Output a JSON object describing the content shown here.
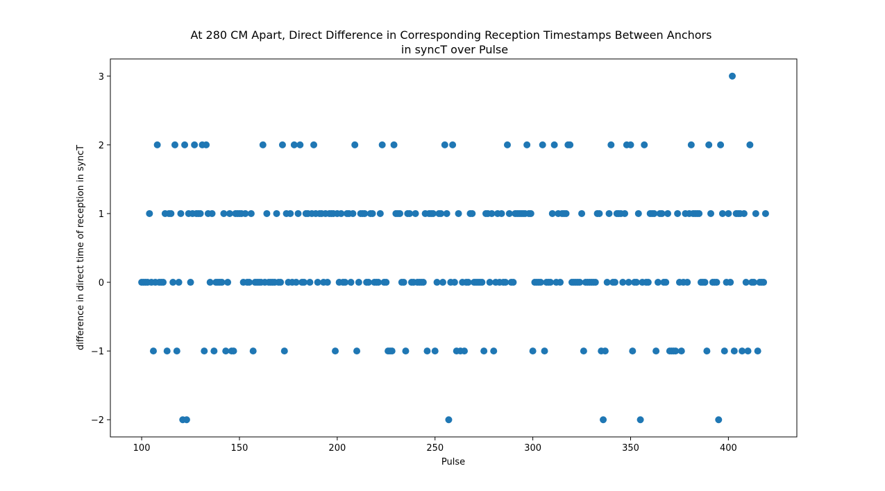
{
  "chart_data": {
    "type": "scatter",
    "title_line1": "At 280 CM Apart, Direct Difference in Corresponding Reception Timestamps Between Anchors",
    "title_line2": "in syncT over Pulse",
    "xlabel": "Pulse",
    "ylabel": "difference in direct time of reception in syncT",
    "xlim": [
      84,
      435
    ],
    "ylim": [
      -2.25,
      3.25
    ],
    "x_ticks": [
      100,
      150,
      200,
      250,
      300,
      350,
      400
    ],
    "y_ticks": [
      -2,
      -1,
      0,
      1,
      2,
      3
    ],
    "x_tick_labels": [
      "100",
      "150",
      "200",
      "250",
      "300",
      "350",
      "400"
    ],
    "y_tick_labels": [
      "−2",
      "−1",
      "0",
      "1",
      "2",
      "3"
    ],
    "grid": false,
    "marker_color": "#1f77b4",
    "series": [
      {
        "points": [
          [
            100,
            0
          ],
          [
            101,
            0
          ],
          [
            102,
            0
          ],
          [
            103,
            0
          ],
          [
            104,
            1
          ],
          [
            105,
            0
          ],
          [
            106,
            -1
          ],
          [
            107,
            0
          ],
          [
            108,
            2
          ],
          [
            109,
            0
          ],
          [
            110,
            0
          ],
          [
            111,
            0
          ],
          [
            112,
            1
          ],
          [
            113,
            -1
          ],
          [
            114,
            1
          ],
          [
            115,
            1
          ],
          [
            116,
            0
          ],
          [
            117,
            2
          ],
          [
            118,
            -1
          ],
          [
            119,
            0
          ],
          [
            120,
            1
          ],
          [
            121,
            -2
          ],
          [
            122,
            2
          ],
          [
            123,
            -2
          ],
          [
            124,
            1
          ],
          [
            125,
            0
          ],
          [
            126,
            1
          ],
          [
            127,
            2
          ],
          [
            128,
            1
          ],
          [
            129,
            1
          ],
          [
            130,
            1
          ],
          [
            131,
            2
          ],
          [
            132,
            -1
          ],
          [
            133,
            2
          ],
          [
            134,
            1
          ],
          [
            135,
            0
          ],
          [
            136,
            1
          ],
          [
            137,
            -1
          ],
          [
            138,
            0
          ],
          [
            139,
            0
          ],
          [
            140,
            0
          ],
          [
            141,
            0
          ],
          [
            142,
            1
          ],
          [
            143,
            -1
          ],
          [
            144,
            0
          ],
          [
            145,
            1
          ],
          [
            146,
            -1
          ],
          [
            147,
            -1
          ],
          [
            148,
            1
          ],
          [
            149,
            1
          ],
          [
            150,
            1
          ],
          [
            151,
            1
          ],
          [
            152,
            0
          ],
          [
            153,
            1
          ],
          [
            154,
            0
          ],
          [
            155,
            0
          ],
          [
            156,
            1
          ],
          [
            157,
            -1
          ],
          [
            158,
            0
          ],
          [
            159,
            0
          ],
          [
            160,
            0
          ],
          [
            161,
            0
          ],
          [
            162,
            2
          ],
          [
            163,
            0
          ],
          [
            164,
            1
          ],
          [
            165,
            0
          ],
          [
            166,
            0
          ],
          [
            167,
            0
          ],
          [
            168,
            0
          ],
          [
            169,
            1
          ],
          [
            170,
            0
          ],
          [
            171,
            0
          ],
          [
            172,
            2
          ],
          [
            173,
            -1
          ],
          [
            174,
            1
          ],
          [
            175,
            0
          ],
          [
            176,
            1
          ],
          [
            177,
            0
          ],
          [
            178,
            2
          ],
          [
            179,
            0
          ],
          [
            180,
            1
          ],
          [
            181,
            2
          ],
          [
            182,
            0
          ],
          [
            183,
            0
          ],
          [
            184,
            1
          ],
          [
            185,
            1
          ],
          [
            186,
            0
          ],
          [
            187,
            1
          ],
          [
            188,
            2
          ],
          [
            189,
            1
          ],
          [
            190,
            0
          ],
          [
            191,
            1
          ],
          [
            192,
            1
          ],
          [
            193,
            0
          ],
          [
            194,
            1
          ],
          [
            195,
            0
          ],
          [
            196,
            1
          ],
          [
            197,
            1
          ],
          [
            198,
            1
          ],
          [
            199,
            -1
          ],
          [
            200,
            1
          ],
          [
            201,
            0
          ],
          [
            202,
            1
          ],
          [
            203,
            0
          ],
          [
            204,
            0
          ],
          [
            205,
            1
          ],
          [
            206,
            1
          ],
          [
            207,
            0
          ],
          [
            208,
            1
          ],
          [
            209,
            2
          ],
          [
            210,
            -1
          ],
          [
            211,
            0
          ],
          [
            212,
            1
          ],
          [
            213,
            1
          ],
          [
            214,
            1
          ],
          [
            215,
            0
          ],
          [
            216,
            0
          ],
          [
            217,
            1
          ],
          [
            218,
            1
          ],
          [
            219,
            0
          ],
          [
            220,
            0
          ],
          [
            221,
            0
          ],
          [
            222,
            1
          ],
          [
            223,
            2
          ],
          [
            224,
            0
          ],
          [
            225,
            0
          ],
          [
            226,
            -1
          ],
          [
            227,
            -1
          ],
          [
            228,
            -1
          ],
          [
            229,
            2
          ],
          [
            230,
            1
          ],
          [
            231,
            1
          ],
          [
            232,
            1
          ],
          [
            233,
            0
          ],
          [
            234,
            0
          ],
          [
            235,
            -1
          ],
          [
            236,
            1
          ],
          [
            237,
            1
          ],
          [
            238,
            0
          ],
          [
            239,
            0
          ],
          [
            240,
            1
          ],
          [
            241,
            0
          ],
          [
            242,
            0
          ],
          [
            243,
            0
          ],
          [
            244,
            0
          ],
          [
            245,
            1
          ],
          [
            246,
            -1
          ],
          [
            247,
            1
          ],
          [
            248,
            1
          ],
          [
            249,
            1
          ],
          [
            250,
            -1
          ],
          [
            251,
            0
          ],
          [
            252,
            1
          ],
          [
            253,
            1
          ],
          [
            254,
            0
          ],
          [
            255,
            2
          ],
          [
            256,
            1
          ],
          [
            257,
            -2
          ],
          [
            258,
            0
          ],
          [
            259,
            2
          ],
          [
            260,
            0
          ],
          [
            261,
            -1
          ],
          [
            262,
            1
          ],
          [
            263,
            -1
          ],
          [
            264,
            0
          ],
          [
            265,
            -1
          ],
          [
            266,
            0
          ],
          [
            267,
            0
          ],
          [
            268,
            1
          ],
          [
            269,
            1
          ],
          [
            270,
            0
          ],
          [
            271,
            0
          ],
          [
            272,
            0
          ],
          [
            273,
            0
          ],
          [
            274,
            0
          ],
          [
            275,
            -1
          ],
          [
            276,
            1
          ],
          [
            277,
            1
          ],
          [
            278,
            0
          ],
          [
            279,
            1
          ],
          [
            280,
            -1
          ],
          [
            281,
            0
          ],
          [
            282,
            1
          ],
          [
            283,
            0
          ],
          [
            284,
            1
          ],
          [
            285,
            0
          ],
          [
            286,
            0
          ],
          [
            287,
            2
          ],
          [
            288,
            1
          ],
          [
            289,
            0
          ],
          [
            290,
            0
          ],
          [
            291,
            1
          ],
          [
            292,
            1
          ],
          [
            293,
            1
          ],
          [
            294,
            1
          ],
          [
            295,
            1
          ],
          [
            296,
            1
          ],
          [
            297,
            2
          ],
          [
            298,
            1
          ],
          [
            299,
            1
          ],
          [
            300,
            -1
          ],
          [
            301,
            0
          ],
          [
            302,
            0
          ],
          [
            303,
            0
          ],
          [
            304,
            0
          ],
          [
            305,
            2
          ],
          [
            306,
            -1
          ],
          [
            307,
            0
          ],
          [
            308,
            0
          ],
          [
            309,
            0
          ],
          [
            310,
            1
          ],
          [
            311,
            2
          ],
          [
            312,
            0
          ],
          [
            313,
            1
          ],
          [
            314,
            0
          ],
          [
            315,
            1
          ],
          [
            316,
            1
          ],
          [
            317,
            1
          ],
          [
            318,
            2
          ],
          [
            319,
            2
          ],
          [
            320,
            0
          ],
          [
            321,
            0
          ],
          [
            322,
            0
          ],
          [
            323,
            0
          ],
          [
            324,
            0
          ],
          [
            325,
            1
          ],
          [
            326,
            -1
          ],
          [
            327,
            0
          ],
          [
            328,
            0
          ],
          [
            329,
            0
          ],
          [
            330,
            0
          ],
          [
            331,
            0
          ],
          [
            332,
            0
          ],
          [
            333,
            1
          ],
          [
            334,
            1
          ],
          [
            335,
            -1
          ],
          [
            336,
            -2
          ],
          [
            337,
            -1
          ],
          [
            338,
            0
          ],
          [
            339,
            1
          ],
          [
            340,
            2
          ],
          [
            341,
            0
          ],
          [
            342,
            0
          ],
          [
            343,
            1
          ],
          [
            344,
            1
          ],
          [
            345,
            1
          ],
          [
            346,
            0
          ],
          [
            347,
            1
          ],
          [
            348,
            2
          ],
          [
            349,
            0
          ],
          [
            350,
            2
          ],
          [
            351,
            -1
          ],
          [
            352,
            0
          ],
          [
            353,
            0
          ],
          [
            354,
            1
          ],
          [
            355,
            -2
          ],
          [
            356,
            0
          ],
          [
            357,
            2
          ],
          [
            358,
            0
          ],
          [
            359,
            0
          ],
          [
            360,
            1
          ],
          [
            361,
            1
          ],
          [
            362,
            1
          ],
          [
            363,
            -1
          ],
          [
            364,
            0
          ],
          [
            365,
            1
          ],
          [
            366,
            1
          ],
          [
            367,
            0
          ],
          [
            368,
            0
          ],
          [
            369,
            1
          ],
          [
            370,
            -1
          ],
          [
            371,
            -1
          ],
          [
            372,
            -1
          ],
          [
            373,
            -1
          ],
          [
            374,
            1
          ],
          [
            375,
            0
          ],
          [
            376,
            -1
          ],
          [
            377,
            0
          ],
          [
            378,
            1
          ],
          [
            379,
            0
          ],
          [
            380,
            1
          ],
          [
            381,
            2
          ],
          [
            382,
            1
          ],
          [
            383,
            1
          ],
          [
            384,
            1
          ],
          [
            385,
            1
          ],
          [
            386,
            0
          ],
          [
            387,
            0
          ],
          [
            388,
            0
          ],
          [
            389,
            -1
          ],
          [
            390,
            2
          ],
          [
            391,
            1
          ],
          [
            392,
            0
          ],
          [
            393,
            0
          ],
          [
            394,
            0
          ],
          [
            395,
            -2
          ],
          [
            396,
            2
          ],
          [
            397,
            1
          ],
          [
            398,
            -1
          ],
          [
            399,
            0
          ],
          [
            400,
            1
          ],
          [
            401,
            0
          ],
          [
            402,
            3
          ],
          [
            403,
            -1
          ],
          [
            404,
            1
          ],
          [
            405,
            1
          ],
          [
            406,
            1
          ],
          [
            407,
            -1
          ],
          [
            408,
            1
          ],
          [
            409,
            0
          ],
          [
            410,
            -1
          ],
          [
            411,
            2
          ],
          [
            412,
            0
          ],
          [
            413,
            0
          ],
          [
            414,
            1
          ],
          [
            415,
            -1
          ],
          [
            416,
            0
          ],
          [
            417,
            0
          ],
          [
            418,
            0
          ],
          [
            419,
            1
          ]
        ]
      }
    ]
  }
}
